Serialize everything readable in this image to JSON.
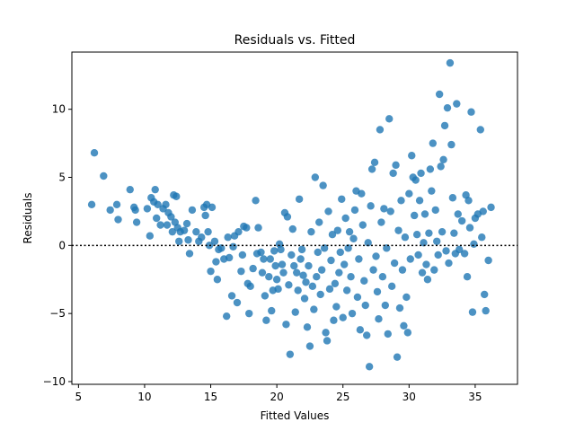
{
  "chart_data": {
    "type": "scatter",
    "title": "Residuals vs. Fitted",
    "xlabel": "Fitted Values",
    "ylabel": "Residuals",
    "xlim": [
      4.5,
      38.2
    ],
    "ylim": [
      -10.2,
      14.2
    ],
    "xticks": [
      5,
      10,
      15,
      20,
      25,
      30,
      35
    ],
    "yticks": [
      -10,
      -5,
      0,
      5,
      10
    ],
    "reference_line": 0,
    "point_color": "#1f77b4",
    "reference_line_color": "#000000",
    "grid": false,
    "points": [
      [
        6.0,
        3.0
      ],
      [
        6.2,
        6.8
      ],
      [
        6.9,
        5.1
      ],
      [
        7.4,
        2.6
      ],
      [
        7.9,
        3.0
      ],
      [
        8.0,
        1.9
      ],
      [
        8.9,
        4.1
      ],
      [
        9.2,
        2.8
      ],
      [
        9.3,
        2.6
      ],
      [
        9.4,
        1.7
      ],
      [
        10.2,
        2.7
      ],
      [
        10.4,
        0.7
      ],
      [
        10.5,
        3.5
      ],
      [
        10.7,
        3.2
      ],
      [
        10.8,
        4.1
      ],
      [
        10.9,
        2.0
      ],
      [
        11.0,
        3.0
      ],
      [
        11.2,
        1.5
      ],
      [
        11.4,
        2.7
      ],
      [
        11.6,
        3.0
      ],
      [
        11.7,
        1.5
      ],
      [
        11.8,
        2.4
      ],
      [
        12.0,
        2.1
      ],
      [
        12.1,
        1.0
      ],
      [
        12.2,
        3.7
      ],
      [
        12.3,
        1.7
      ],
      [
        12.4,
        3.6
      ],
      [
        12.5,
        1.3
      ],
      [
        12.6,
        0.3
      ],
      [
        12.7,
        1.0
      ],
      [
        13.0,
        1.1
      ],
      [
        13.2,
        1.6
      ],
      [
        13.3,
        0.4
      ],
      [
        13.4,
        -0.6
      ],
      [
        13.6,
        2.6
      ],
      [
        13.9,
        1.0
      ],
      [
        14.1,
        0.3
      ],
      [
        14.3,
        0.6
      ],
      [
        14.5,
        2.8
      ],
      [
        14.6,
        2.2
      ],
      [
        14.7,
        3.0
      ],
      [
        14.8,
        1.0
      ],
      [
        14.9,
        0.0
      ],
      [
        15.0,
        -1.9
      ],
      [
        15.1,
        2.8
      ],
      [
        15.3,
        0.3
      ],
      [
        15.4,
        -1.2
      ],
      [
        15.5,
        -2.5
      ],
      [
        15.6,
        -0.3
      ],
      [
        15.8,
        -0.2
      ],
      [
        16.0,
        -1.0
      ],
      [
        16.2,
        -5.2
      ],
      [
        16.3,
        0.6
      ],
      [
        16.4,
        -0.9
      ],
      [
        16.6,
        -3.7
      ],
      [
        16.7,
        -0.1
      ],
      [
        16.8,
        0.7
      ],
      [
        17.0,
        -4.2
      ],
      [
        17.1,
        1.0
      ],
      [
        17.3,
        -1.9
      ],
      [
        17.4,
        -0.7
      ],
      [
        17.5,
        1.4
      ],
      [
        17.7,
        1.3
      ],
      [
        17.8,
        -2.8
      ],
      [
        17.9,
        -5.0
      ],
      [
        18.0,
        -3.0
      ],
      [
        18.2,
        -1.7
      ],
      [
        18.4,
        3.3
      ],
      [
        18.5,
        -0.6
      ],
      [
        18.6,
        1.3
      ],
      [
        18.8,
        -0.5
      ],
      [
        18.9,
        -2.0
      ],
      [
        19.0,
        -1.0
      ],
      [
        19.1,
        -3.7
      ],
      [
        19.2,
        -5.5
      ],
      [
        19.4,
        -2.3
      ],
      [
        19.5,
        -1.0
      ],
      [
        19.6,
        -4.8
      ],
      [
        19.7,
        -3.3
      ],
      [
        19.8,
        -0.4
      ],
      [
        19.9,
        -1.5
      ],
      [
        20.0,
        -2.5
      ],
      [
        20.1,
        -3.2
      ],
      [
        20.2,
        0.1
      ],
      [
        20.3,
        -0.3
      ],
      [
        20.4,
        -1.4
      ],
      [
        20.5,
        -2.0
      ],
      [
        20.6,
        2.4
      ],
      [
        20.7,
        -5.8
      ],
      [
        20.8,
        2.1
      ],
      [
        20.9,
        -2.9
      ],
      [
        21.0,
        -8.0
      ],
      [
        21.1,
        -0.7
      ],
      [
        21.2,
        1.2
      ],
      [
        21.3,
        -1.5
      ],
      [
        21.4,
        -4.9
      ],
      [
        21.5,
        -2.0
      ],
      [
        21.6,
        -3.3
      ],
      [
        21.7,
        3.4
      ],
      [
        21.8,
        -1.0
      ],
      [
        21.9,
        -0.3
      ],
      [
        22.0,
        -2.2
      ],
      [
        22.1,
        -3.9
      ],
      [
        22.2,
        -2.7
      ],
      [
        22.3,
        -6.0
      ],
      [
        22.4,
        -1.5
      ],
      [
        22.5,
        -7.4
      ],
      [
        22.6,
        1.0
      ],
      [
        22.7,
        -3.0
      ],
      [
        22.8,
        -4.7
      ],
      [
        22.9,
        5.0
      ],
      [
        23.0,
        -2.3
      ],
      [
        23.1,
        -0.5
      ],
      [
        23.2,
        1.7
      ],
      [
        23.3,
        -3.6
      ],
      [
        23.4,
        -1.8
      ],
      [
        23.5,
        4.4
      ],
      [
        23.6,
        -0.2
      ],
      [
        23.7,
        -6.4
      ],
      [
        23.8,
        -7.0
      ],
      [
        23.9,
        2.5
      ],
      [
        24.0,
        -3.2
      ],
      [
        24.1,
        -1.1
      ],
      [
        24.2,
        0.8
      ],
      [
        24.3,
        -5.5
      ],
      [
        24.4,
        -2.8
      ],
      [
        24.5,
        -4.5
      ],
      [
        24.6,
        1.1
      ],
      [
        24.7,
        -2.0
      ],
      [
        24.8,
        -0.5
      ],
      [
        24.9,
        3.4
      ],
      [
        25.0,
        -5.3
      ],
      [
        25.1,
        -1.4
      ],
      [
        25.2,
        2.0
      ],
      [
        25.3,
        -3.3
      ],
      [
        25.4,
        -0.2
      ],
      [
        25.5,
        1.0
      ],
      [
        25.6,
        -2.3
      ],
      [
        25.7,
        -5.0
      ],
      [
        25.8,
        0.5
      ],
      [
        25.9,
        2.6
      ],
      [
        26.0,
        4.0
      ],
      [
        26.1,
        -3.8
      ],
      [
        26.2,
        -1.0
      ],
      [
        26.3,
        -6.2
      ],
      [
        26.4,
        3.8
      ],
      [
        26.5,
        1.5
      ],
      [
        26.6,
        -2.6
      ],
      [
        26.7,
        -4.4
      ],
      [
        26.8,
        -6.6
      ],
      [
        26.9,
        0.2
      ],
      [
        27.0,
        -8.9
      ],
      [
        27.1,
        2.9
      ],
      [
        27.2,
        5.6
      ],
      [
        27.3,
        -1.8
      ],
      [
        27.4,
        6.1
      ],
      [
        27.5,
        -0.8
      ],
      [
        27.6,
        -3.4
      ],
      [
        27.7,
        -5.4
      ],
      [
        27.8,
        8.5
      ],
      [
        27.9,
        1.7
      ],
      [
        28.0,
        -2.3
      ],
      [
        28.1,
        2.7
      ],
      [
        28.2,
        -4.4
      ],
      [
        28.3,
        -0.2
      ],
      [
        28.4,
        -6.5
      ],
      [
        28.5,
        9.3
      ],
      [
        28.6,
        2.5
      ],
      [
        28.7,
        -3.0
      ],
      [
        28.8,
        5.3
      ],
      [
        28.9,
        -1.3
      ],
      [
        29.0,
        5.9
      ],
      [
        29.1,
        -8.2
      ],
      [
        29.2,
        1.1
      ],
      [
        29.3,
        -4.6
      ],
      [
        29.4,
        3.3
      ],
      [
        29.5,
        -1.8
      ],
      [
        29.6,
        -5.9
      ],
      [
        29.7,
        0.6
      ],
      [
        29.8,
        -3.8
      ],
      [
        29.9,
        -6.4
      ],
      [
        30.0,
        3.8
      ],
      [
        30.1,
        -1.0
      ],
      [
        30.2,
        6.6
      ],
      [
        30.3,
        5.0
      ],
      [
        30.4,
        2.2
      ],
      [
        30.5,
        4.8
      ],
      [
        30.6,
        0.8
      ],
      [
        30.7,
        -0.7
      ],
      [
        30.8,
        3.3
      ],
      [
        30.9,
        5.3
      ],
      [
        31.0,
        -2.0
      ],
      [
        31.1,
        0.2
      ],
      [
        31.2,
        2.3
      ],
      [
        31.3,
        -1.4
      ],
      [
        31.4,
        -2.5
      ],
      [
        31.5,
        0.9
      ],
      [
        31.6,
        5.6
      ],
      [
        31.7,
        4.0
      ],
      [
        31.8,
        7.5
      ],
      [
        31.9,
        -1.8
      ],
      [
        32.0,
        2.6
      ],
      [
        32.1,
        0.3
      ],
      [
        32.2,
        -0.7
      ],
      [
        32.3,
        11.1
      ],
      [
        32.4,
        5.8
      ],
      [
        32.5,
        1.0
      ],
      [
        32.6,
        6.3
      ],
      [
        32.7,
        8.8
      ],
      [
        32.8,
        -0.4
      ],
      [
        32.9,
        10.1
      ],
      [
        33.0,
        -1.3
      ],
      [
        33.1,
        13.4
      ],
      [
        33.2,
        7.4
      ],
      [
        33.3,
        3.5
      ],
      [
        33.4,
        0.9
      ],
      [
        33.5,
        -0.6
      ],
      [
        33.6,
        10.4
      ],
      [
        33.7,
        2.3
      ],
      [
        33.8,
        -0.3
      ],
      [
        34.0,
        1.8
      ],
      [
        34.2,
        -0.6
      ],
      [
        34.3,
        3.7
      ],
      [
        34.4,
        -2.3
      ],
      [
        34.5,
        3.3
      ],
      [
        34.6,
        1.3
      ],
      [
        34.7,
        9.8
      ],
      [
        34.8,
        -4.9
      ],
      [
        34.9,
        0.1
      ],
      [
        35.0,
        2.0
      ],
      [
        35.2,
        2.3
      ],
      [
        35.4,
        8.5
      ],
      [
        35.5,
        0.6
      ],
      [
        35.6,
        2.5
      ],
      [
        35.7,
        -3.6
      ],
      [
        35.8,
        -4.8
      ],
      [
        36.0,
        -1.1
      ],
      [
        36.2,
        2.8
      ]
    ]
  }
}
